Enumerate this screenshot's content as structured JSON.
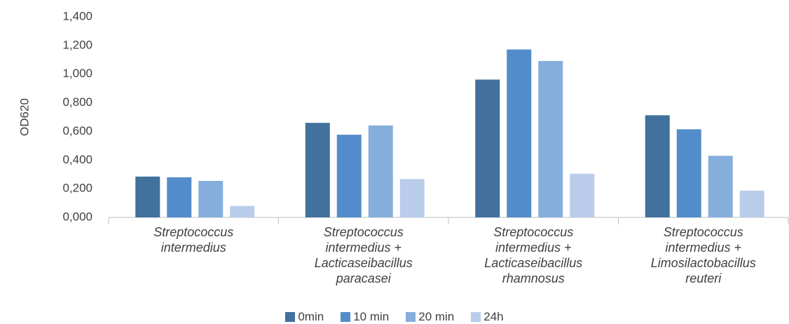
{
  "chart_data": {
    "type": "bar",
    "ylabel": "OD620",
    "categories": [
      "Streptococcus intermedius",
      "Streptococcus intermedius + Lacticaseibacillus paracasei",
      "Streptococcus intermedius + Lacticaseibacillus rhamnosus",
      "Streptococcus intermedius + Limosilactobacillus reuteri"
    ],
    "series": [
      {
        "name": "0min",
        "color": "#41719c",
        "values": [
          0.285,
          0.66,
          0.962,
          0.713
        ]
      },
      {
        "name": "10 min",
        "color": "#528ccb",
        "values": [
          0.28,
          0.577,
          1.172,
          0.615
        ]
      },
      {
        "name": "20 min",
        "color": "#86aedc",
        "values": [
          0.255,
          0.642,
          1.092,
          0.43
        ]
      },
      {
        "name": "24h",
        "color": "#b9cdea",
        "values": [
          0.08,
          0.268,
          0.305,
          0.187
        ]
      }
    ],
    "ylim": [
      0,
      1.4
    ],
    "yticks": [
      {
        "value": 0,
        "label": "0,000"
      },
      {
        "value": 0.2,
        "label": "0,200"
      },
      {
        "value": 0.4,
        "label": "0,400"
      },
      {
        "value": 0.6,
        "label": "0,600"
      },
      {
        "value": 0.8,
        "label": "0,800"
      },
      {
        "value": 1.0,
        "label": "1,000"
      },
      {
        "value": 1.2,
        "label": "1,200"
      },
      {
        "value": 1.4,
        "label": "1,400"
      }
    ],
    "legend": "bottom",
    "grid": false
  }
}
